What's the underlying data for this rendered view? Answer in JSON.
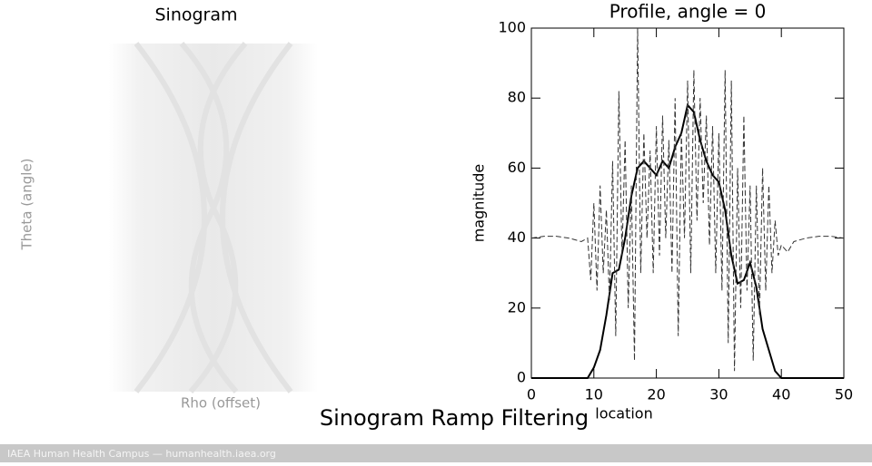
{
  "sinogram": {
    "title": "Sinogram",
    "x_label": "Rho (offset)",
    "y_label": "Theta (angle)"
  },
  "caption": "Sinogram Ramp Filtering",
  "footer": "IAEA Human Health Campus — humanhealth.iaea.org",
  "chart_data": {
    "type": "line",
    "title": "Profile, angle = 0",
    "x_label": "location",
    "y_label": "magnitude",
    "xlim": [
      0,
      50
    ],
    "ylim": [
      0,
      100
    ],
    "xticks": [
      0,
      10,
      20,
      30,
      40,
      50
    ],
    "yticks": [
      0,
      20,
      40,
      60,
      80,
      100
    ],
    "series": [
      {
        "color": "#000000",
        "style": "solid",
        "x": [
          0,
          9,
          10,
          11,
          12,
          13,
          14,
          15,
          16,
          17,
          18,
          19,
          20,
          21,
          22,
          23,
          24,
          25,
          26,
          27,
          28,
          29,
          30,
          31,
          32,
          33,
          34,
          35,
          36,
          37,
          38,
          39,
          40,
          50
        ],
        "values": [
          0,
          0,
          3,
          8,
          18,
          30,
          31,
          40,
          52,
          60,
          62,
          60,
          58,
          62,
          60,
          66,
          70,
          78,
          76,
          68,
          62,
          58,
          56,
          48,
          35,
          27,
          28,
          33,
          26,
          14,
          8,
          2,
          0,
          0
        ]
      },
      {
        "color": "#333333",
        "style": "dashed",
        "x": [
          0,
          2,
          4,
          6,
          8,
          9,
          9.5,
          10,
          10.5,
          11,
          11.5,
          12,
          12.5,
          13,
          13.5,
          14,
          14.5,
          15,
          15.5,
          16,
          16.5,
          17,
          17.5,
          18,
          18.5,
          19,
          19.5,
          20,
          20.5,
          21,
          21.5,
          22,
          22.5,
          23,
          23.5,
          24,
          24.5,
          25,
          25.5,
          26,
          26.5,
          27,
          27.5,
          28,
          28.5,
          29,
          29.5,
          30,
          30.5,
          31,
          31.5,
          32,
          32.5,
          33,
          33.5,
          34,
          34.5,
          35,
          35.5,
          36,
          36.5,
          37,
          37.5,
          38,
          38.5,
          39,
          39.5,
          40,
          41,
          42,
          44,
          46,
          48,
          50
        ],
        "values": [
          40,
          40.5,
          40.5,
          40,
          39,
          40,
          28,
          50,
          25,
          55,
          30,
          48,
          22,
          62,
          12,
          82,
          35,
          68,
          20,
          55,
          5,
          100,
          30,
          70,
          40,
          65,
          30,
          72,
          35,
          75,
          40,
          68,
          30,
          80,
          12,
          70,
          40,
          85,
          30,
          88,
          45,
          80,
          50,
          75,
          38,
          72,
          30,
          70,
          25,
          88,
          10,
          85,
          2,
          60,
          20,
          75,
          25,
          55,
          5,
          55,
          18,
          60,
          25,
          55,
          30,
          45,
          35,
          38,
          36,
          39,
          40,
          40.5,
          40.5,
          40
        ]
      }
    ]
  }
}
